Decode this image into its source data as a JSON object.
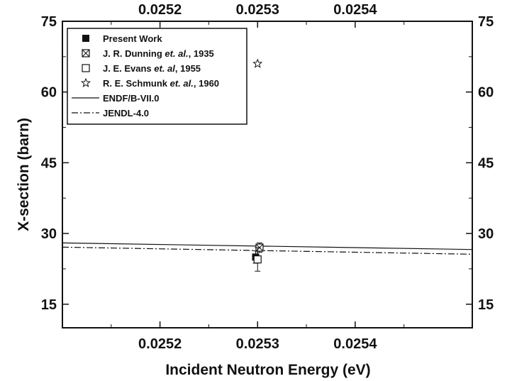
{
  "chart_data": {
    "type": "scatter",
    "xlabel": "Incident Neutron Energy (eV)",
    "ylabel": "X-section (barn)",
    "xlim": [
      0.0251,
      0.02552
    ],
    "ylim": [
      10,
      75
    ],
    "x_ticks": [
      0.0252,
      0.0253,
      0.0254
    ],
    "x_tick_labels": [
      "0.0252",
      "0.0253",
      "0.0254"
    ],
    "y_ticks": [
      15,
      30,
      45,
      60,
      75
    ],
    "y_tick_labels": [
      "15",
      "30",
      "45",
      "60",
      "75"
    ],
    "top_axis_tick_labels": [
      "0.0252",
      "0.0253",
      "0.0254"
    ],
    "right_axis_tick_labels": [
      "15",
      "30",
      "45",
      "60",
      "75"
    ],
    "grid": false,
    "legend_position": "top-left",
    "legend": [
      {
        "label_main": "Present Work",
        "label_italic": "",
        "label_tail": "",
        "marker": "filled-square"
      },
      {
        "label_main": "J. R. Dunning ",
        "label_italic": "et. al.",
        "label_tail": ", 1935",
        "marker": "crossed-square"
      },
      {
        "label_main": "J. E. Evans ",
        "label_italic": "et. al",
        "label_tail": ", 1955",
        "marker": "open-square"
      },
      {
        "label_main": "R. E. Schmunk ",
        "label_italic": "et. al.",
        "label_tail": ", 1960",
        "marker": "open-star"
      },
      {
        "label_main": "ENDF/B-VII.0",
        "label_italic": "",
        "label_tail": "",
        "marker": "solid-line"
      },
      {
        "label_main": "JENDL-4.0",
        "label_italic": "",
        "label_tail": "",
        "marker": "dashdot-line"
      }
    ],
    "series": [
      {
        "name": "Present Work",
        "marker": "filled-square",
        "points": [
          {
            "x": 0.025298,
            "y": 25.0,
            "err": 1.3
          }
        ]
      },
      {
        "name": "J. R. Dunning et. al., 1935",
        "marker": "crossed-square",
        "points": [
          {
            "x": 0.025302,
            "y": 27.0,
            "err": 1.0
          }
        ]
      },
      {
        "name": "J. E. Evans et. al, 1955",
        "marker": "open-square",
        "points": [
          {
            "x": 0.0253,
            "y": 24.5,
            "err": 2.5
          }
        ]
      },
      {
        "name": "R. E. Schmunk et. al., 1960",
        "marker": "open-star",
        "points": [
          {
            "x": 0.0253,
            "y": 66.0,
            "err": 0
          }
        ]
      },
      {
        "name": "ENDF/B-VII.0",
        "line": "solid",
        "points": [
          {
            "x": 0.0251,
            "y": 28.0
          },
          {
            "x": 0.02552,
            "y": 26.6
          }
        ]
      },
      {
        "name": "JENDL-4.0",
        "line": "dashdot",
        "points": [
          {
            "x": 0.0251,
            "y": 27.1
          },
          {
            "x": 0.02552,
            "y": 25.6
          }
        ]
      }
    ],
    "colors": {
      "ink": "#111111",
      "background": "#ffffff"
    }
  }
}
